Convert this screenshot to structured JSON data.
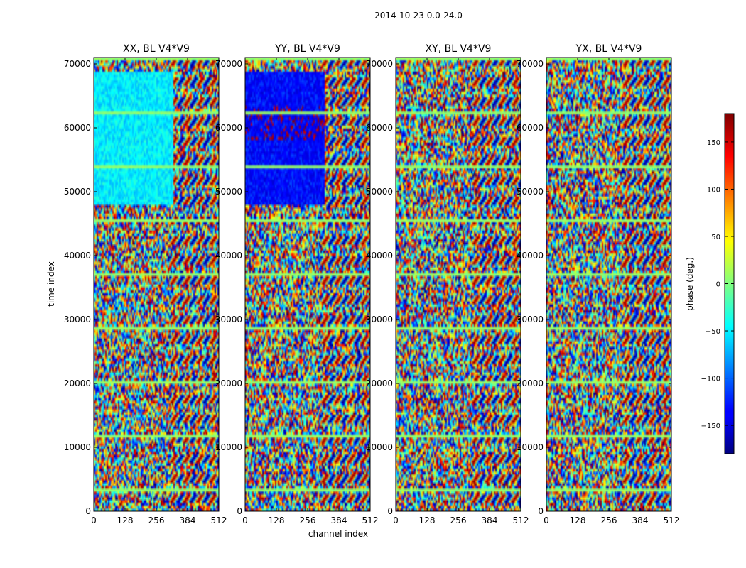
{
  "figure": {
    "suptitle": "2014-10-23 0.0-24.0"
  },
  "chart_data": {
    "type": "heatmap",
    "panels": [
      {
        "title": "XX, BL V4*V9"
      },
      {
        "title": "YY, BL V4*V9"
      },
      {
        "title": "XY, BL V4*V9"
      },
      {
        "title": "YX, BL V4*V9"
      }
    ],
    "xlabel": "channel index",
    "ylabel": "time index",
    "xlim": [
      0,
      512
    ],
    "ylim": [
      0,
      71000
    ],
    "xticks": [
      0,
      128,
      256,
      384,
      512
    ],
    "yticks": [
      0,
      10000,
      20000,
      30000,
      40000,
      50000,
      60000,
      70000
    ],
    "colorbar": {
      "label": "phase (deg.)",
      "range": [
        -180,
        180
      ],
      "ticks": [
        -150,
        -100,
        -50,
        0,
        50,
        100,
        150
      ],
      "tick_labels": [
        "−150",
        "−100",
        "−50",
        "0",
        "50",
        "100",
        "150"
      ],
      "colormap": "jet"
    }
  }
}
